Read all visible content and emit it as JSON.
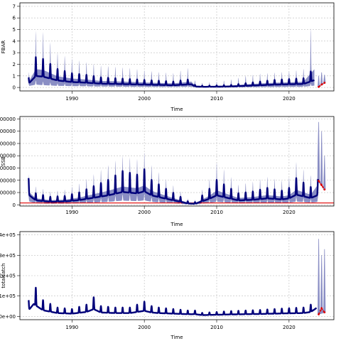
{
  "colors": {
    "band": "#8a8ec4",
    "line": "#00007a",
    "recent": "#e00000",
    "refline": "#e00000",
    "grid": "#bdbdbd"
  },
  "chart_data": [
    {
      "type": "area",
      "id": "fbar",
      "title": "",
      "xlabel": "Time",
      "ylabel": "FBAR",
      "xlim": [
        1982.8,
        2026.2
      ],
      "ylim": [
        -0.3,
        7.3
      ],
      "xticks": [
        1990,
        2000,
        2010,
        2020
      ],
      "yticks": [
        0,
        1,
        2,
        3,
        4,
        5,
        6,
        7
      ],
      "ytick_labels": [
        "0",
        "1",
        "2",
        "3",
        "4",
        "5",
        "6",
        "7"
      ],
      "grid": true,
      "seasonal": true,
      "series": [
        {
          "role": "median",
          "x": [
            1984,
            1985,
            1986,
            1988,
            1990,
            1992,
            1994,
            1996,
            1998,
            2000,
            2002,
            2004,
            2006.5,
            2007,
            2008,
            2010,
            2012,
            2014,
            2016,
            2018,
            2020,
            2022,
            2023.5
          ],
          "y": [
            0.6,
            1.8,
            1.7,
            1.1,
            0.85,
            0.75,
            0.6,
            0.55,
            0.5,
            0.45,
            0.4,
            0.35,
            0.5,
            0.15,
            0.1,
            0.12,
            0.15,
            0.25,
            0.35,
            0.45,
            0.5,
            0.55,
            1.15
          ]
        },
        {
          "role": "upper",
          "x": [
            1984,
            1985,
            1986,
            1988,
            1990,
            1992,
            1994,
            1996,
            1998,
            2000,
            2002,
            2004,
            2006.5,
            2007,
            2008,
            2010,
            2012,
            2014,
            2016,
            2018,
            2020,
            2022,
            2023.5
          ],
          "y": [
            1.3,
            4.9,
            4.8,
            3.0,
            2.5,
            2.2,
            1.9,
            1.8,
            1.7,
            1.5,
            1.35,
            1.25,
            1.8,
            0.6,
            0.4,
            0.5,
            0.7,
            1.0,
            1.2,
            1.3,
            1.4,
            1.6,
            6.9
          ]
        },
        {
          "role": "lower",
          "x": [
            1984,
            1985,
            1986,
            1988,
            1990,
            1992,
            1994,
            1996,
            1998,
            2000,
            2002,
            2004,
            2006.5,
            2007,
            2008,
            2010,
            2012,
            2014,
            2016,
            2018,
            2020,
            2022,
            2023.5
          ],
          "y": [
            0.3,
            0.6,
            0.5,
            0.35,
            0.3,
            0.25,
            0.2,
            0.18,
            0.15,
            0.12,
            0.1,
            0.1,
            0.15,
            0.03,
            0.02,
            0.03,
            0.04,
            0.06,
            0.08,
            0.1,
            0.12,
            0.15,
            0.4
          ]
        },
        {
          "role": "recent",
          "x": [
            2024.1,
            2024.5,
            2024.9
          ],
          "y": [
            0.05,
            0.25,
            0.4
          ]
        },
        {
          "role": "recent-upper",
          "x": [
            2024.1,
            2024.5,
            2024.9
          ],
          "y": [
            1.0,
            1.3,
            1.1
          ]
        }
      ]
    },
    {
      "type": "area",
      "id": "ssb",
      "title": "",
      "xlabel": "Time",
      "ylabel": "SSB",
      "xlim": [
        1982.8,
        2026.2
      ],
      "ylim": [
        -20000,
        1440000
      ],
      "xticks": [
        1990,
        2000,
        2010,
        2020
      ],
      "yticks": [
        0,
        200000,
        400000,
        600000,
        800000,
        1000000,
        1200000,
        1400000
      ],
      "ytick_labels": [
        "0",
        "200000",
        "400000",
        "600000",
        "800000",
        "1000000",
        "1200000",
        "1400000"
      ],
      "grid": true,
      "seasonal": true,
      "reference_line": 30000,
      "series": [
        {
          "role": "median",
          "x": [
            1984,
            1985,
            1987,
            1989,
            1991,
            1993,
            1995,
            1997,
            1999,
            2000,
            2001,
            2003,
            2005,
            2006,
            2007,
            2009,
            2010,
            2011,
            2013,
            2015,
            2017,
            2019,
            2020,
            2021,
            2022,
            2023,
            2024
          ],
          "y": [
            300000,
            130000,
            90000,
            100000,
            140000,
            210000,
            280000,
            380000,
            340000,
            400000,
            280000,
            180000,
            90000,
            40000,
            30000,
            180000,
            280000,
            230000,
            130000,
            150000,
            190000,
            160000,
            190000,
            300000,
            250000,
            200000,
            290000
          ]
        },
        {
          "role": "upper",
          "x": [
            1984,
            1985,
            1987,
            1989,
            1991,
            1993,
            1995,
            1997,
            1999,
            2000,
            2001,
            2003,
            2005,
            2006,
            2007,
            2009,
            2010,
            2011,
            2013,
            2015,
            2017,
            2019,
            2020,
            2021,
            2022,
            2023,
            2024
          ],
          "y": [
            500000,
            300000,
            220000,
            250000,
            350000,
            500000,
            650000,
            800000,
            750000,
            860000,
            650000,
            420000,
            220000,
            100000,
            80000,
            420000,
            700000,
            580000,
            330000,
            380000,
            460000,
            400000,
            450000,
            700000,
            580000,
            480000,
            1300000
          ]
        },
        {
          "role": "lower",
          "x": [
            1984,
            1985,
            1987,
            1989,
            1991,
            1993,
            1995,
            1997,
            1999,
            2000,
            2001,
            2003,
            2005,
            2006,
            2007,
            2009,
            2010,
            2011,
            2013,
            2015,
            2017,
            2019,
            2020,
            2021,
            2022,
            2023,
            2024
          ],
          "y": [
            140000,
            60000,
            40000,
            45000,
            60000,
            90000,
            120000,
            170000,
            150000,
            180000,
            120000,
            80000,
            40000,
            15000,
            10000,
            80000,
            120000,
            100000,
            55000,
            65000,
            80000,
            70000,
            85000,
            130000,
            110000,
            90000,
            120000
          ]
        },
        {
          "role": "recent",
          "x": [
            2024.1,
            2024.5,
            2024.9
          ],
          "y": [
            390000,
            320000,
            250000
          ]
        },
        {
          "role": "recent-upper",
          "x": [
            2024.1,
            2024.5,
            2024.9
          ],
          "y": [
            1350000,
            1200000,
            800000
          ]
        }
      ]
    },
    {
      "type": "line",
      "id": "catch",
      "title": "",
      "xlabel": "Time",
      "ylabel": "totalcatch",
      "xlim": [
        1982.8,
        2026.2
      ],
      "ylim": [
        -16000,
        416000
      ],
      "xticks": [
        1990,
        2000,
        2010,
        2020
      ],
      "yticks": [
        0,
        100000,
        200000,
        300000,
        400000
      ],
      "ytick_labels": [
        "0e+00",
        "1e+05",
        "2e+05",
        "3e+05",
        "4e+05"
      ],
      "grid": true,
      "seasonal": true,
      "series": [
        {
          "role": "median",
          "x": [
            1984,
            1984.7,
            1986,
            1988,
            1990,
            1992,
            1993,
            1994,
            1996,
            1998,
            2000,
            2001,
            2002,
            2004,
            2006,
            2007,
            2008,
            2010,
            2012,
            2014,
            2016,
            2018,
            2020,
            2022,
            2023,
            2023.8
          ],
          "y": [
            55000,
            110000,
            55000,
            30000,
            25000,
            40000,
            65000,
            35000,
            30000,
            30000,
            50000,
            35000,
            30000,
            25000,
            20000,
            20000,
            12000,
            15000,
            18000,
            20000,
            22000,
            25000,
            28000,
            30000,
            40000,
            75000
          ]
        },
        {
          "role": "recent",
          "x": [
            2024.1,
            2024.5,
            2024.9
          ],
          "y": [
            10000,
            40000,
            20000
          ]
        },
        {
          "role": "recent-upper",
          "x": [
            2024.1,
            2024.5,
            2024.9
          ],
          "y": [
            380000,
            300000,
            330000
          ]
        }
      ]
    }
  ]
}
